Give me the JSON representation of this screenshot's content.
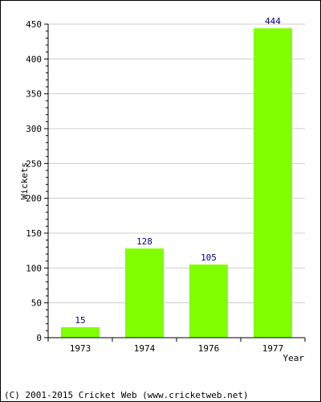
{
  "chart_data": {
    "type": "bar",
    "categories": [
      "1973",
      "1974",
      "1976",
      "1977"
    ],
    "values": [
      15,
      128,
      105,
      444
    ],
    "data_labels": [
      "15",
      "128",
      "105",
      "444"
    ],
    "title": "",
    "xlabel": "Year",
    "ylabel": "Wickets",
    "ylim": [
      0,
      450
    ],
    "y_ticks": [
      "0",
      "50",
      "100",
      "150",
      "200",
      "250",
      "300",
      "350",
      "400",
      "450"
    ],
    "grid": true,
    "bar_color": "#80ff00",
    "label_color": "#000080"
  },
  "footer": {
    "copyright": "(C) 2001-2015 Cricket Web (www.cricketweb.net)"
  }
}
